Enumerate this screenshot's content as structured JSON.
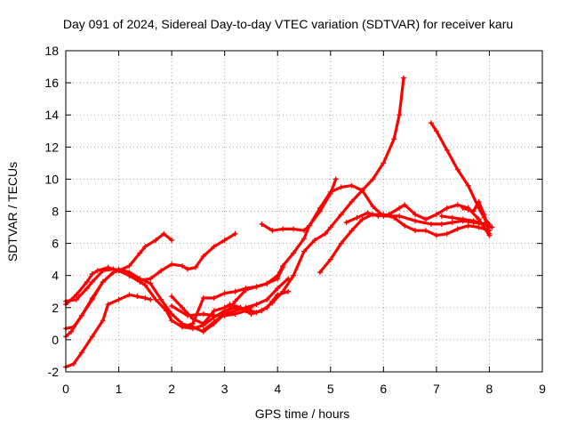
{
  "chart_data": {
    "type": "scatter",
    "title": "Day 091 of 2024, Sidereal Day-to-day VTEC variation (SDTVAR) for receiver karu",
    "xlabel": "GPS time / hours",
    "ylabel": "SDTVAR / TECUs",
    "xlim": [
      0,
      9
    ],
    "ylim": [
      -2,
      18
    ],
    "xticks": [
      0,
      1,
      2,
      3,
      4,
      5,
      6,
      7,
      8,
      9
    ],
    "yticks": [
      -2,
      0,
      2,
      4,
      6,
      8,
      10,
      12,
      14,
      16,
      18
    ],
    "grid": true,
    "marker": "+",
    "color": "#ff0000",
    "series": [
      {
        "x": [
          0.0,
          0.2,
          0.4,
          0.5,
          0.7,
          0.9,
          1.0,
          1.2,
          1.4,
          1.5,
          1.7,
          1.85,
          2.0
        ],
        "y": [
          2.4,
          2.5,
          3.2,
          3.6,
          4.3,
          4.4,
          4.3,
          4.6,
          5.4,
          5.8,
          6.2,
          6.6,
          6.2
        ]
      },
      {
        "x": [
          0.0,
          0.2,
          0.4,
          0.5,
          0.6,
          0.8,
          1.0,
          1.2,
          1.4,
          1.6,
          1.8,
          2.0,
          2.2,
          2.3,
          2.45,
          2.6,
          2.8,
          3.0,
          3.2
        ],
        "y": [
          2.2,
          2.8,
          3.6,
          4.1,
          4.3,
          4.5,
          4.3,
          4.0,
          3.7,
          3.8,
          4.3,
          4.7,
          4.6,
          4.4,
          4.5,
          5.2,
          5.8,
          6.2,
          6.6
        ]
      },
      {
        "x": [
          0.0,
          0.15,
          0.3,
          0.5,
          0.7,
          0.9,
          1.0,
          1.2,
          1.4,
          1.5,
          1.7,
          1.9,
          2.0,
          2.2,
          2.4,
          2.6,
          2.8,
          3.0,
          3.2,
          3.4,
          3.6,
          3.8,
          3.9,
          4.0,
          4.2
        ],
        "y": [
          0.7,
          0.8,
          1.5,
          2.5,
          3.6,
          4.2,
          4.3,
          4.0,
          3.6,
          3.4,
          2.5,
          1.8,
          1.2,
          0.8,
          0.7,
          0.9,
          1.4,
          1.8,
          2.0,
          1.9,
          1.7,
          2.0,
          2.4,
          2.8,
          3.0
        ]
      },
      {
        "x": [
          0.0,
          0.1,
          0.3,
          0.5,
          0.7,
          0.9,
          1.0,
          1.2,
          1.4,
          1.6,
          1.8,
          2.0,
          2.2,
          2.4,
          2.6,
          2.8,
          3.0,
          3.2,
          3.4,
          3.6,
          3.8,
          4.0,
          4.2
        ],
        "y": [
          0.2,
          0.5,
          1.5,
          2.6,
          3.6,
          4.2,
          4.4,
          4.2,
          3.8,
          3.5,
          2.5,
          1.6,
          1.0,
          0.8,
          0.5,
          1.0,
          1.6,
          1.8,
          2.0,
          2.2,
          2.5,
          3.2,
          3.8
        ]
      },
      {
        "x": [
          0.0,
          0.15,
          0.3,
          0.5,
          0.7,
          0.8,
          1.0,
          1.2,
          1.35,
          1.5,
          1.6
        ],
        "y": [
          -1.7,
          -1.5,
          -0.8,
          0.2,
          1.2,
          2.2,
          2.5,
          2.8,
          2.7,
          2.6,
          2.5
        ]
      },
      {
        "x": [
          2.0,
          2.2,
          2.4,
          2.6,
          2.8,
          3.0,
          3.1,
          3.3,
          3.5,
          3.7,
          3.9,
          4.1,
          4.3,
          4.5,
          4.7,
          4.9,
          5.0,
          5.2,
          5.4,
          5.6,
          5.8,
          6.0,
          6.2,
          6.3,
          6.38
        ],
        "y": [
          2.7,
          2.0,
          1.3,
          1.0,
          1.8,
          2.0,
          2.2,
          2.0,
          1.6,
          1.8,
          2.3,
          3.0,
          4.0,
          5.5,
          6.2,
          6.6,
          7.0,
          7.8,
          8.6,
          9.3,
          10.0,
          11.0,
          12.5,
          14.0,
          16.3
        ]
      },
      {
        "x": [
          2.2,
          2.4,
          2.6,
          2.8,
          3.0,
          3.2,
          3.4,
          3.6,
          3.8,
          4.0,
          4.1
        ],
        "y": [
          0.8,
          1.0,
          2.6,
          2.6,
          2.9,
          3.0,
          3.2,
          3.3,
          3.5,
          3.8,
          4.5
        ]
      },
      {
        "x": [
          2.6,
          2.8,
          3.0,
          3.2,
          3.4,
          3.6,
          3.8,
          4.0,
          4.1,
          4.3,
          4.5,
          4.6,
          4.8,
          5.0,
          5.1
        ],
        "y": [
          0.6,
          1.1,
          1.6,
          2.4,
          3.1,
          3.3,
          3.5,
          4.0,
          4.6,
          5.4,
          6.3,
          7.1,
          8.0,
          9.1,
          10.0
        ]
      },
      {
        "x": [
          2.0,
          2.3,
          2.6,
          2.8,
          3.0,
          3.2,
          3.4,
          3.5
        ],
        "y": [
          2.1,
          1.5,
          1.6,
          1.5,
          1.5,
          1.6,
          1.8,
          2.0
        ]
      },
      {
        "x": [
          3.7,
          3.9,
          4.1,
          4.3,
          4.5,
          4.6,
          4.8,
          5.0,
          5.2,
          5.4,
          5.6,
          5.8,
          6.0,
          6.3,
          6.6,
          6.9,
          7.1,
          7.3,
          7.5,
          7.7,
          7.9,
          8.0
        ],
        "y": [
          7.2,
          6.8,
          6.9,
          6.9,
          6.8,
          7.1,
          8.2,
          9.2,
          9.5,
          9.6,
          9.3,
          8.3,
          7.7,
          7.7,
          7.4,
          7.2,
          7.2,
          7.3,
          7.4,
          7.3,
          7.2,
          7.0
        ]
      },
      {
        "x": [
          4.8,
          5.0,
          5.2,
          5.4,
          5.6,
          5.8,
          6.0,
          6.2,
          6.4,
          6.6,
          6.8,
          7.0,
          7.2,
          7.4,
          7.6,
          7.8,
          8.0
        ],
        "y": [
          4.2,
          5.0,
          6.0,
          6.8,
          7.5,
          7.8,
          7.8,
          7.6,
          7.1,
          6.8,
          6.8,
          6.5,
          6.6,
          6.9,
          7.1,
          7.0,
          6.8
        ]
      },
      {
        "x": [
          5.3,
          5.5,
          5.7,
          5.9,
          6.1,
          6.3,
          6.4,
          6.6,
          6.8,
          7.0,
          7.2,
          7.4,
          7.6,
          7.8,
          8.0
        ],
        "y": [
          7.3,
          7.6,
          7.9,
          7.7,
          7.8,
          8.2,
          8.4,
          7.8,
          7.5,
          7.8,
          8.2,
          8.4,
          8.2,
          7.5,
          6.5
        ]
      },
      {
        "x": [
          6.9,
          7.0,
          7.2,
          7.4,
          7.6,
          7.8,
          7.9,
          8.0
        ],
        "y": [
          13.5,
          13.0,
          11.8,
          10.6,
          9.6,
          8.2,
          7.6,
          7.2
        ]
      },
      {
        "x": [
          7.1,
          7.3,
          7.5,
          7.7,
          7.9,
          8.05
        ],
        "y": [
          7.7,
          7.6,
          7.5,
          7.4,
          7.2,
          7.0
        ]
      },
      {
        "x": [
          7.5,
          7.6,
          7.7,
          7.8,
          7.9,
          8.0
        ],
        "y": [
          8.2,
          8.1,
          8.0,
          8.6,
          7.8,
          6.6
        ]
      }
    ]
  }
}
